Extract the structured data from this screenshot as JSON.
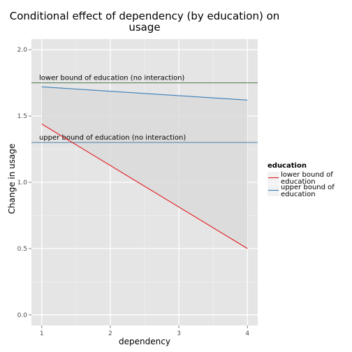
{
  "chart_data": {
    "type": "line",
    "title_lines": [
      "Conditional effect of dependency (by education) on",
      "usage"
    ],
    "xlabel": "dependency",
    "ylabel": "Change in usage",
    "xlim": [
      0.85,
      4.15
    ],
    "ylim": [
      -0.08,
      2.08
    ],
    "x_ticks": [
      1,
      2,
      3,
      4
    ],
    "y_ticks": [
      0.0,
      0.5,
      1.0,
      1.5,
      2.0
    ],
    "x_tick_labels": [
      "1",
      "2",
      "3",
      "4"
    ],
    "y_tick_labels": [
      "0.0",
      "0.5",
      "1.0",
      "1.5",
      "2.0"
    ],
    "grid": true,
    "legend_position": "right",
    "legend_title": "education",
    "series": [
      {
        "name": "lower bound of education",
        "label_lines": [
          "lower bound of",
          "education"
        ],
        "color": "#e41a1c",
        "x": [
          1,
          4
        ],
        "y": [
          1.44,
          0.5
        ]
      },
      {
        "name": "upper bound of education",
        "label_lines": [
          "upper bound of",
          "education"
        ],
        "color": "#377eb8",
        "x": [
          1,
          4
        ],
        "y": [
          1.72,
          1.62
        ]
      }
    ],
    "ribbon": {
      "x": [
        1,
        4
      ],
      "upper": [
        1.72,
        1.62
      ],
      "lower": [
        1.44,
        0.5
      ],
      "color": "#d9d9d9"
    },
    "hlines": [
      {
        "label": "lower bound of education (no interaction)",
        "y": 1.75,
        "color": "#4d7a4d"
      },
      {
        "label": "upper bound of education (no interaction)",
        "y": 1.3,
        "color": "#4a7fa8"
      }
    ]
  }
}
